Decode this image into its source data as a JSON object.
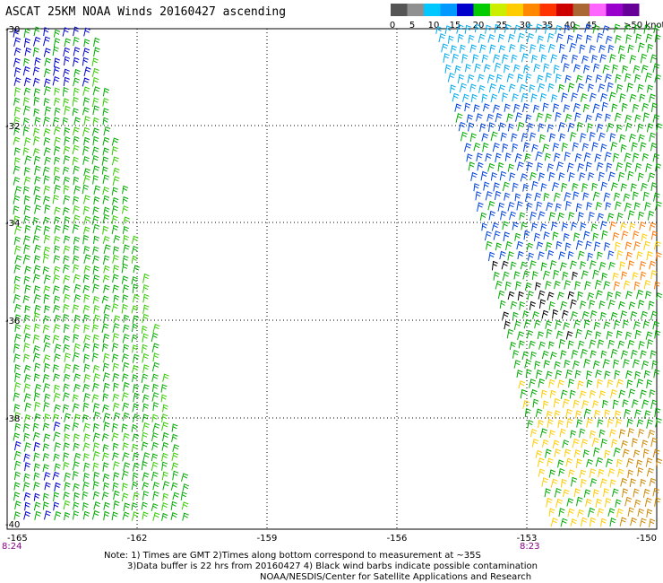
{
  "title": "ASCAT 25KM NOAA Winds 20160427 ascending",
  "legend": {
    "colors": [
      "#555555",
      "#909090",
      "#00c8ff",
      "#0099ff",
      "#0000cc",
      "#00cc00",
      "#ccee00",
      "#ffcc00",
      "#ff8800",
      "#ff3300",
      "#cc0000",
      "#aa6633",
      "#ff66ff",
      "#9900cc",
      "#660099"
    ],
    "labels": [
      "0",
      "5",
      "10",
      "15",
      "20",
      "25",
      "30",
      "35",
      "40",
      "45",
      ">50 knots"
    ]
  },
  "map": {
    "lat_labels": [
      "-30",
      "-32",
      "-34",
      "-36",
      "-38",
      "-40"
    ],
    "lon_labels": [
      "-165",
      "-162",
      "-159",
      "-156",
      "-153",
      "-150"
    ],
    "time_labels": [
      "8:24",
      "8:23"
    ]
  },
  "notes": {
    "line1": "Note: 1) Times are GMT 2)Times along bottom correspond to measurement at ~35S",
    "line2": "3)Data buffer is 22 hrs from 20160427 4) Black wind barbs indicate possible contamination",
    "line3": "NOAA/NESDIS/Center for Satellite Applications and Research"
  }
}
